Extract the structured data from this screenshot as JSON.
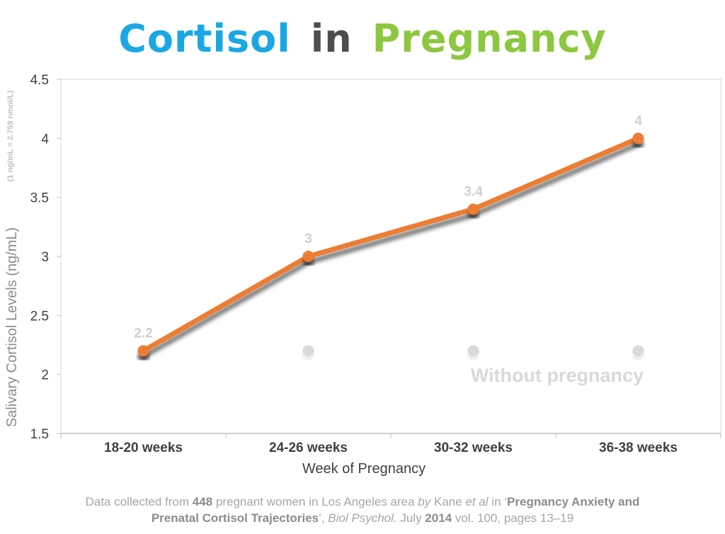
{
  "title": {
    "part1": "Cortisol",
    "part2": "in",
    "part3": "Pregnancy",
    "colors": {
      "part1": "#1aa7e4",
      "part2": "#4d4d4d",
      "part3": "#8dc73f"
    }
  },
  "chart_data": {
    "type": "line",
    "categories": [
      "18-20 weeks",
      "24-26 weeks",
      "30-32 weeks",
      "36-38 weeks"
    ],
    "series": [
      {
        "name": "",
        "values": [
          2.2,
          3,
          3.4,
          4
        ],
        "data_labels": [
          "2.2",
          "3",
          "3.4",
          "4"
        ],
        "color": "#ed7d31"
      },
      {
        "name": "Without pregnancy",
        "values": [
          2.2,
          2.2,
          2.2,
          2.2
        ],
        "color": "#d9d9d9"
      }
    ],
    "xlabel": "Week of Pregnancy",
    "ylabel": "Salivary Cortisol Levels (ng/mL)",
    "ylabel_note": "(1 ng/mL = 2.759 nmol/L)",
    "ylim": [
      1.5,
      4.5
    ],
    "yticks": [
      "1.5",
      "2",
      "2.5",
      "3",
      "3.5",
      "4",
      "4.5"
    ],
    "grid": false
  },
  "source": {
    "t1": "Data collected from ",
    "b1": "448",
    "t2": " pregnant women in Los Angeles area ",
    "i1": "by",
    "t3": " Kane ",
    "i2": "et al",
    "t4": " in ‘",
    "b2": "Pregnancy Anxiety and",
    "b3": "Prenatal Cortisol Trajectories",
    "t5": "’, ",
    "i3": "Biol Psychol.",
    "t6": " July ",
    "b4": "2014",
    "t7": " vol. 100, pages 13–19"
  }
}
